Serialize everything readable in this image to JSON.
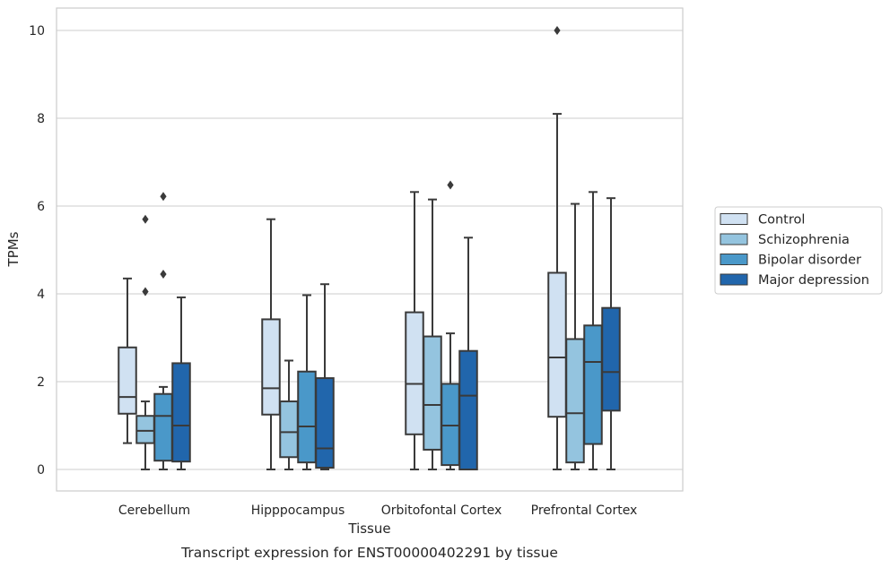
{
  "chart_data": {
    "type": "boxplot",
    "title": "",
    "caption": "Transcript expression for ENST00000402291 by tissue",
    "xlabel": "Tissue",
    "ylabel": "TPMs",
    "ylim": [
      -0.5,
      10.5
    ],
    "yticks": [
      0,
      2,
      4,
      6,
      8,
      10
    ],
    "grid": "horizontal",
    "legend_position": "right",
    "categories": [
      "Cerebellum",
      "Hipppocampus",
      "Orbitofontal Cortex",
      "Prefrontal Cortex"
    ],
    "series": [
      {
        "name": "Control",
        "color": "#d0e1f2",
        "boxes": [
          {
            "whislo": 0.6,
            "q1": 1.27,
            "med": 1.65,
            "q3": 2.78,
            "whishi": 4.35,
            "fliers": []
          },
          {
            "whislo": 0.0,
            "q1": 1.25,
            "med": 1.85,
            "q3": 3.42,
            "whishi": 5.7,
            "fliers": []
          },
          {
            "whislo": 0.0,
            "q1": 0.8,
            "med": 1.95,
            "q3": 3.58,
            "whishi": 6.32,
            "fliers": []
          },
          {
            "whislo": 0.0,
            "q1": 1.2,
            "med": 2.55,
            "q3": 4.48,
            "whishi": 8.1,
            "fliers": [
              10.0
            ]
          }
        ]
      },
      {
        "name": "Schizophrenia",
        "color": "#94c4df",
        "boxes": [
          {
            "whislo": 0.0,
            "q1": 0.6,
            "med": 0.88,
            "q3": 1.22,
            "whishi": 1.55,
            "fliers": [
              4.05,
              5.7
            ]
          },
          {
            "whislo": 0.0,
            "q1": 0.28,
            "med": 0.85,
            "q3": 1.55,
            "whishi": 2.48,
            "fliers": []
          },
          {
            "whislo": 0.0,
            "q1": 0.45,
            "med": 1.47,
            "q3": 3.03,
            "whishi": 6.15,
            "fliers": []
          },
          {
            "whislo": 0.0,
            "q1": 0.16,
            "med": 1.28,
            "q3": 2.97,
            "whishi": 6.05,
            "fliers": []
          }
        ]
      },
      {
        "name": "Bipolar disorder",
        "color": "#4a98c9",
        "boxes": [
          {
            "whislo": 0.0,
            "q1": 0.2,
            "med": 1.22,
            "q3": 1.72,
            "whishi": 1.88,
            "fliers": [
              4.45,
              6.22
            ]
          },
          {
            "whislo": 0.0,
            "q1": 0.16,
            "med": 0.98,
            "q3": 2.23,
            "whishi": 3.97,
            "fliers": []
          },
          {
            "whislo": 0.0,
            "q1": 0.1,
            "med": 1.0,
            "q3": 1.95,
            "whishi": 3.1,
            "fliers": [
              6.48
            ]
          },
          {
            "whislo": 0.0,
            "q1": 0.58,
            "med": 2.45,
            "q3": 3.28,
            "whishi": 6.32,
            "fliers": []
          }
        ]
      },
      {
        "name": "Major depression",
        "color": "#2166ac",
        "boxes": [
          {
            "whislo": 0.0,
            "q1": 0.18,
            "med": 1.0,
            "q3": 2.42,
            "whishi": 3.92,
            "fliers": []
          },
          {
            "whislo": 0.0,
            "q1": 0.04,
            "med": 0.48,
            "q3": 2.08,
            "whishi": 4.22,
            "fliers": []
          },
          {
            "whislo": 0.0,
            "q1": 0.0,
            "med": 1.68,
            "q3": 2.7,
            "whishi": 5.28,
            "fliers": []
          },
          {
            "whislo": 0.0,
            "q1": 1.34,
            "med": 2.22,
            "q3": 3.68,
            "whishi": 6.18,
            "fliers": []
          }
        ]
      }
    ]
  }
}
